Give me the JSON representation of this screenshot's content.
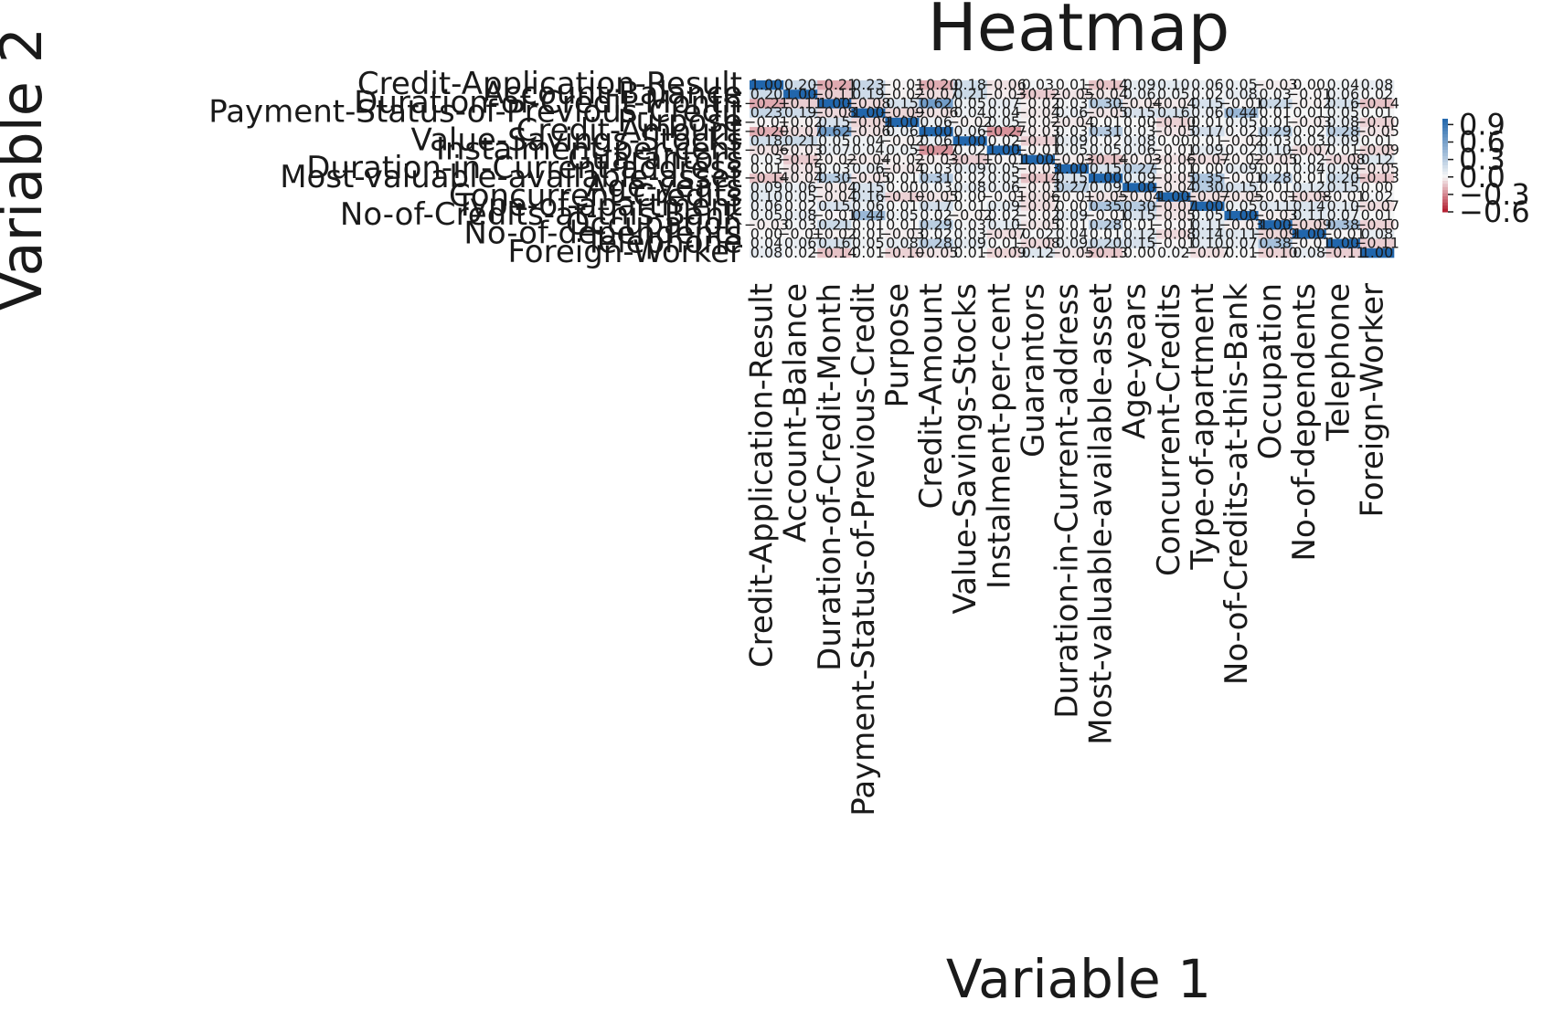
{
  "chart_data": {
    "type": "heatmap",
    "title": "Heatmap",
    "xlabel": "Variable 1",
    "ylabel": "Variable 2",
    "variables": [
      "Credit-Application-Result",
      "Account-Balance",
      "Duration-of-Credit-Month",
      "Payment-Status-of-Previous-Credit",
      "Purpose",
      "Credit-Amount",
      "Value-Savings-Stocks",
      "Instalment-per-cent",
      "Guarantors",
      "Duration-in-Current-address",
      "Most-valuable-available-asset",
      "Age-years",
      "Concurrent-Credits",
      "Type-of-apartment",
      "No-of-Credits-at-this-Bank",
      "Occupation",
      "No-of-dependents",
      "Telephone",
      "Foreign-Worker"
    ],
    "x_tick_labels": [
      "Credit-Application-Result",
      "Account-Balance",
      "Duration-of-Credit-Month",
      "Payment-Status-of-Previous-Credit",
      "Purpose",
      "Credit-Amount",
      "Value-Savings-Stocks",
      "Instalment-per-cent",
      "Guarantors",
      "Duration-in-Current-address",
      "Most-valuable-available-asset",
      "Age-years",
      "Concurrent-Credits",
      "Type-of-apartment",
      "No-of-Credits-at-this-Bank",
      "Occupation",
      "No-of-dependents",
      "Telephone",
      "Foreign-Worker"
    ],
    "y_tick_labels": [
      "Credit-Application-Result",
      "Account-Balance",
      "Duration-of-Credit-Month",
      "Payment-Status-of-Previous-Credit",
      "Purpose",
      "Credit-Amount",
      "Value-Savings-Stocks",
      "Instalment-per-cent",
      "Guarantors",
      "Duration-in-Current-address",
      "Most-valuable-available-asset",
      "Age-years",
      "Concurrent-Credits",
      "Type-of-apartment",
      "No-of-Credits-at-this-Bank",
      "Occupation",
      "No-of-dependents",
      "Telephone",
      "Foreign-Worker"
    ],
    "matrix": [
      [
        1.0,
        0.2,
        -0.21,
        0.23,
        -0.01,
        -0.2,
        0.18,
        -0.06,
        0.03,
        0.01,
        -0.14,
        0.09,
        0.1,
        0.06,
        0.05,
        -0.03,
        0.0,
        0.04,
        0.08
      ],
      [
        0.2,
        1.0,
        -0.11,
        0.19,
        -0.02,
        -0.07,
        0.21,
        -0.03,
        -0.12,
        -0.05,
        -0.04,
        0.06,
        0.05,
        0.02,
        0.08,
        0.03,
        -0.01,
        0.06,
        0.02
      ],
      [
        -0.21,
        -0.11,
        1.0,
        -0.08,
        0.15,
        0.62,
        0.05,
        0.07,
        -0.02,
        0.03,
        0.3,
        -0.04,
        -0.04,
        0.15,
        -0.01,
        0.21,
        -0.02,
        0.16,
        -0.14
      ],
      [
        0.23,
        0.19,
        -0.08,
        1.0,
        -0.09,
        -0.06,
        0.04,
        0.04,
        -0.04,
        0.06,
        -0.05,
        0.15,
        0.16,
        0.06,
        0.44,
        0.01,
        0.01,
        0.05,
        0.01
      ],
      [
        -0.01,
        -0.02,
        0.15,
        -0.09,
        1.0,
        0.06,
        -0.02,
        0.05,
        -0.02,
        -0.04,
        0.01,
        0.0,
        -0.1,
        0.01,
        0.05,
        0.01,
        -0.03,
        0.08,
        -0.1
      ],
      [
        -0.2,
        -0.07,
        0.62,
        -0.06,
        0.06,
        1.0,
        0.06,
        -0.27,
        -0.03,
        0.03,
        0.31,
        0.03,
        -0.05,
        0.17,
        0.02,
        0.29,
        0.02,
        0.28,
        -0.05
      ],
      [
        0.18,
        0.21,
        0.05,
        0.04,
        -0.02,
        0.06,
        1.0,
        0.02,
        -0.11,
        0.09,
        0.02,
        0.08,
        0.0,
        0.01,
        -0.02,
        0.03,
        0.03,
        0.09,
        0.01
      ],
      [
        -0.06,
        -0.03,
        0.07,
        0.04,
        0.05,
        -0.27,
        0.02,
        1.0,
        -0.01,
        0.05,
        0.05,
        0.06,
        -0.01,
        0.09,
        0.02,
        0.1,
        -0.07,
        0.01,
        -0.09
      ],
      [
        0.03,
        -0.12,
        -0.02,
        -0.04,
        -0.02,
        -0.03,
        -0.11,
        -0.01,
        1.0,
        -0.03,
        -0.14,
        -0.03,
        -0.06,
        -0.07,
        -0.02,
        -0.05,
        0.02,
        -0.08,
        0.12
      ],
      [
        0.01,
        -0.05,
        0.03,
        0.06,
        -0.04,
        0.03,
        0.09,
        0.05,
        -0.03,
        1.0,
        0.15,
        0.27,
        -0.01,
        0.0,
        0.09,
        0.01,
        0.04,
        0.09,
        -0.05
      ],
      [
        -0.14,
        -0.04,
        0.3,
        -0.05,
        0.01,
        0.31,
        0.02,
        0.05,
        -0.14,
        0.15,
        1.0,
        0.09,
        -0.05,
        0.35,
        -0.01,
        0.28,
        0.01,
        0.2,
        -0.13
      ],
      [
        0.09,
        0.06,
        -0.04,
        0.15,
        0.0,
        0.03,
        0.08,
        0.06,
        -0.03,
        0.27,
        0.09,
        1.0,
        -0.04,
        0.3,
        0.15,
        0.01,
        0.12,
        0.15,
        0.0
      ],
      [
        0.1,
        0.05,
        -0.04,
        0.16,
        -0.1,
        -0.05,
        0.0,
        -0.01,
        -0.06,
        -0.01,
        -0.05,
        -0.04,
        1.0,
        -0.07,
        -0.05,
        -0.01,
        -0.08,
        -0.01,
        0.02
      ],
      [
        0.06,
        0.02,
        0.15,
        0.06,
        0.01,
        0.17,
        0.01,
        0.09,
        -0.07,
        0.0,
        0.35,
        0.3,
        -0.07,
        1.0,
        0.05,
        0.11,
        0.14,
        0.1,
        -0.07
      ],
      [
        0.05,
        0.08,
        -0.01,
        0.44,
        0.05,
        0.02,
        -0.02,
        0.02,
        -0.02,
        0.09,
        -0.01,
        0.15,
        -0.05,
        0.05,
        1.0,
        -0.03,
        0.11,
        0.07,
        0.01
      ],
      [
        -0.03,
        0.03,
        0.21,
        0.01,
        0.01,
        0.29,
        0.03,
        0.1,
        -0.05,
        0.01,
        0.28,
        0.01,
        -0.01,
        0.11,
        -0.03,
        1.0,
        -0.09,
        0.38,
        -0.1
      ],
      [
        0.0,
        -0.01,
        -0.02,
        0.01,
        -0.03,
        0.02,
        0.03,
        -0.07,
        0.02,
        0.04,
        0.01,
        0.12,
        -0.08,
        0.14,
        0.11,
        -0.09,
        1.0,
        -0.01,
        0.08
      ],
      [
        0.04,
        0.06,
        0.16,
        0.05,
        0.08,
        0.28,
        0.09,
        0.01,
        -0.08,
        0.09,
        0.2,
        0.15,
        -0.01,
        0.1,
        0.07,
        0.38,
        -0.01,
        1.0,
        -0.11
      ],
      [
        0.08,
        0.02,
        -0.14,
        0.01,
        -0.1,
        -0.05,
        0.01,
        -0.09,
        0.12,
        -0.05,
        -0.13,
        0.0,
        0.02,
        -0.07,
        0.01,
        -0.1,
        0.08,
        -0.11,
        1.0
      ]
    ],
    "colorbar": {
      "colormap": "RdBu",
      "ticks": [
        "0.9",
        "0.6",
        "0.3",
        "0.0",
        "−0.3",
        "−0.6"
      ],
      "tick_values": [
        0.9,
        0.6,
        0.3,
        0.0,
        -0.3,
        -0.6
      ],
      "range": [
        -0.6,
        1.0
      ]
    },
    "legend": "right",
    "grid": false
  },
  "colors": {
    "strong_positive": "#2166ac",
    "neutral": "#f7f7f7",
    "strong_negative": "#b2182b",
    "text": "#1a1a1a"
  }
}
